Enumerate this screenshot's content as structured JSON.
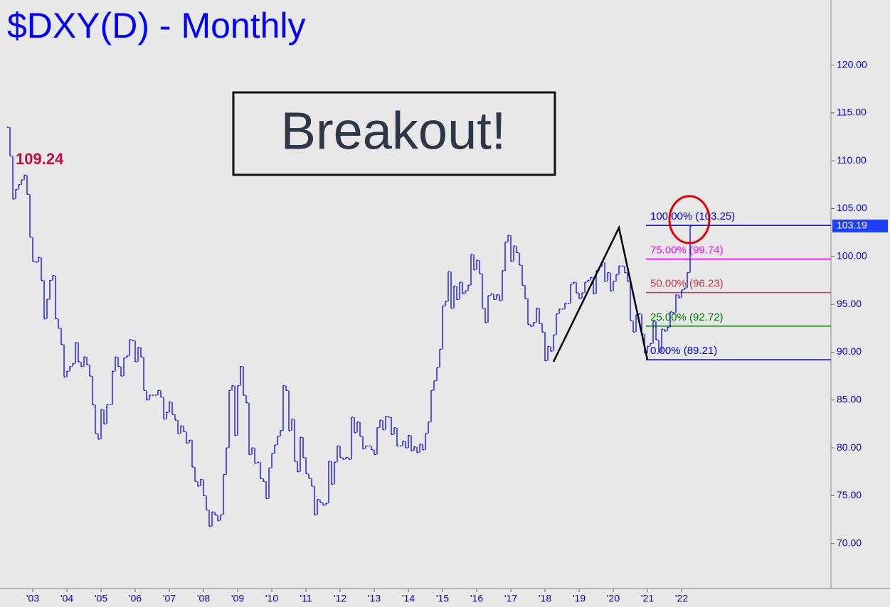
{
  "chart_data": {
    "type": "ohlc",
    "title": "$DXY(D) - Monthly",
    "headline": "Breakout!",
    "annotation": "109.24",
    "color": "#0000ff",
    "close": [
      113.5,
      110.5,
      106,
      107,
      107.5,
      108,
      108.5,
      106.5,
      102,
      99.5,
      99.4,
      99.9,
      97.5,
      93.5,
      95.5,
      97.5,
      98,
      93.5,
      92.5,
      90.8,
      87.4,
      88,
      88.5,
      88.8,
      91,
      89,
      88.5,
      89.5,
      88.7,
      87.5,
      84.5,
      81.5,
      80.9,
      84,
      82.5,
      84.5,
      84.5,
      88,
      89.5,
      88.5,
      87.5,
      89.4,
      89.6,
      91.3,
      91.2,
      89,
      90.5,
      89.5,
      86,
      85,
      85.5,
      85.5,
      85.5,
      86,
      85.3,
      83,
      83.7,
      84.8,
      83.5,
      82.9,
      81.5,
      82.3,
      81.7,
      80.5,
      80.8,
      78,
      76.5,
      76,
      76.7,
      75,
      73.5,
      71.8,
      73.3,
      73,
      72.4,
      73,
      77.2,
      80,
      86,
      86.5,
      81.3,
      86.5,
      88.5,
      85.5,
      84.7,
      79.3,
      80,
      78.4,
      78.5,
      76.8,
      76.5,
      74.7,
      77.9,
      79.4,
      80.3,
      81.2,
      81.8,
      86.5,
      86,
      81.8,
      83,
      78.6,
      77.5,
      81.1,
      79,
      77.3,
      76.8,
      76,
      73,
      74.6,
      74.3,
      74,
      74.2,
      78.6,
      76.2,
      78.5,
      80.2,
      79,
      78.8,
      79,
      78.8,
      83.2,
      81.6,
      82.7,
      81.2,
      79.9,
      80.2,
      80.2,
      79.8,
      79.3,
      82.1,
      82.9,
      81.9,
      83.3,
      83.2,
      81.4,
      82.1,
      80.2,
      80.2,
      80.7,
      80,
      81.3,
      79.7,
      80.1,
      79.5,
      80.4,
      79.8,
      81.5,
      82.7,
      86,
      87,
      88.4,
      90.3,
      94.8,
      95.3,
      98.4,
      94.6,
      96.9,
      95.5,
      97.3,
      96.1,
      96.4,
      97,
      100.2,
      98.6,
      99.6,
      98.2,
      94.6,
      93.1,
      95.9,
      96.1,
      95.5,
      96,
      95.4,
      98.5,
      101.5,
      102.2,
      99.5,
      101.1,
      100.4,
      99.1,
      97,
      95.6,
      92.9,
      92.7,
      93.1,
      94.6,
      93,
      92.1,
      89.1,
      90.6,
      90.1,
      91.8,
      94,
      94.5,
      94.5,
      95.1,
      95.1,
      97.1,
      97.3,
      96.2,
      95.6,
      96.2,
      97.3,
      97.5,
      97.8,
      96.1,
      98.5,
      98.9,
      99.4,
      97.4,
      98.3,
      96.4,
      97.4,
      98.1,
      99,
      99,
      98.3,
      97.4,
      93.3,
      92.1,
      93.9,
      94,
      91.9,
      89.9,
      90.6,
      90.9,
      93.2,
      91.3,
      90,
      92.4,
      92.2,
      92.6,
      94.2,
      94.1,
      96,
      95.7,
      96.5,
      96.7,
      98.3,
      103.19
    ],
    "xlim": [
      0,
      240
    ],
    "xticks": [
      {
        "value": 9,
        "label": "'03"
      },
      {
        "value": 21,
        "label": "'04"
      },
      {
        "value": 33,
        "label": "'05"
      },
      {
        "value": 45,
        "label": "'06"
      },
      {
        "value": 57,
        "label": "'07"
      },
      {
        "value": 69,
        "label": "'08"
      },
      {
        "value": 81,
        "label": "'09"
      },
      {
        "value": 93,
        "label": "'10"
      },
      {
        "value": 105,
        "label": "'11"
      },
      {
        "value": 117,
        "label": "'12"
      },
      {
        "value": 129,
        "label": "'13"
      },
      {
        "value": 141,
        "label": "'14"
      },
      {
        "value": 153,
        "label": "'15"
      },
      {
        "value": 165,
        "label": "'16"
      },
      {
        "value": 177,
        "label": "'17"
      },
      {
        "value": 189,
        "label": "'18"
      },
      {
        "value": 201,
        "label": "'19"
      },
      {
        "value": 213,
        "label": "'20"
      },
      {
        "value": 225,
        "label": "'21"
      },
      {
        "value": 237,
        "label": "'22"
      }
    ],
    "ylim": [
      65.3,
      126.8
    ],
    "yticks": [
      {
        "value": 70,
        "label": "70.00"
      },
      {
        "value": 75,
        "label": "75.00"
      },
      {
        "value": 80,
        "label": "80.00"
      },
      {
        "value": 85,
        "label": "85.00"
      },
      {
        "value": 90,
        "label": "90.00"
      },
      {
        "value": 95,
        "label": "95.00"
      },
      {
        "value": 100,
        "label": "100.00"
      },
      {
        "value": 105,
        "label": "105.00"
      },
      {
        "value": 110,
        "label": "110.00"
      },
      {
        "value": 115,
        "label": "115.00"
      },
      {
        "value": 120,
        "label": "120.00"
      }
    ],
    "fib_levels": [
      {
        "value": 103.25,
        "label": "100.00% (103.25)",
        "color": "#0000dd"
      },
      {
        "value": 99.74,
        "label": "75.00% (99.74)",
        "color": "#ff00ff"
      },
      {
        "value": 96.23,
        "label": "50.00% (96.23)",
        "color": "#cc3344"
      },
      {
        "value": 92.72,
        "label": "25.00% (92.72)",
        "color": "#008000"
      },
      {
        "value": 89.21,
        "label": "0.00% (89.21)",
        "color": "#0000dd"
      }
    ],
    "zigzag": {
      "x": [
        192,
        215,
        225
      ],
      "y": [
        89,
        103,
        89.21
      ]
    }
  }
}
